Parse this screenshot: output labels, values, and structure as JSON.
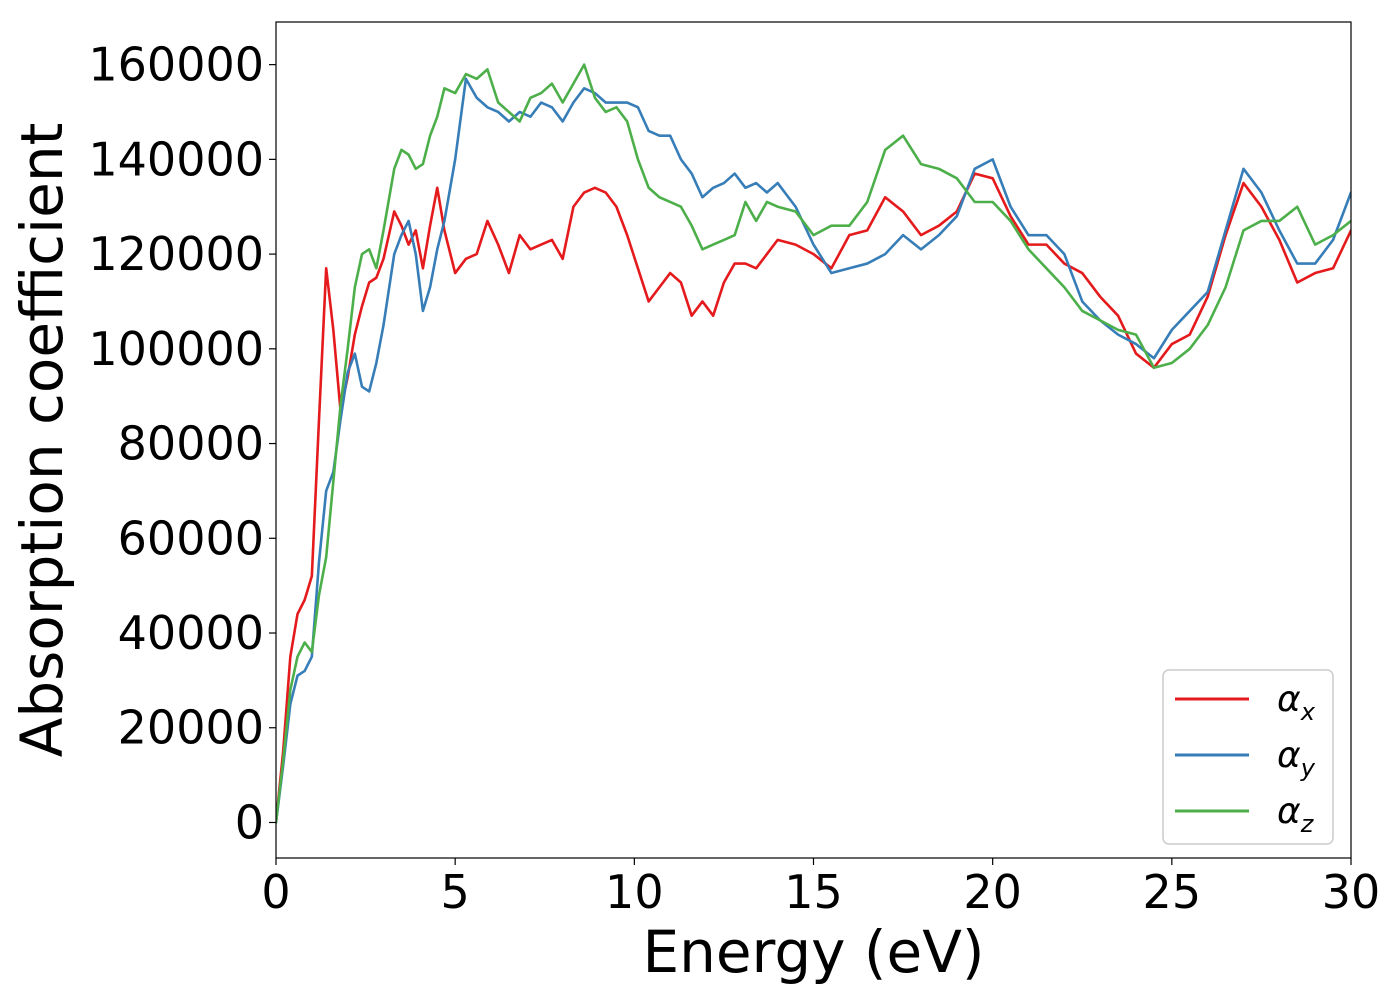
{
  "chart_data": {
    "type": "line",
    "xlabel": "Energy (eV)",
    "ylabel": "Absorption coefficient",
    "xlim": [
      0,
      30
    ],
    "ylim": [
      -7500,
      169000
    ],
    "xticks": [
      0,
      5,
      10,
      15,
      20,
      25,
      30
    ],
    "yticks": [
      0,
      20000,
      40000,
      60000,
      80000,
      100000,
      120000,
      140000,
      160000
    ],
    "grid": false,
    "legend_position": "lower-right",
    "series": [
      {
        "name": "αx",
        "name_base": "α",
        "name_sub": "x",
        "color": "#e41a1c",
        "x": [
          0,
          0.2,
          0.4,
          0.6,
          0.8,
          1.0,
          1.2,
          1.4,
          1.6,
          1.8,
          2.0,
          2.2,
          2.4,
          2.6,
          2.8,
          3.0,
          3.3,
          3.5,
          3.7,
          3.9,
          4.1,
          4.3,
          4.5,
          4.7,
          5.0,
          5.3,
          5.6,
          5.9,
          6.2,
          6.5,
          6.8,
          7.1,
          7.4,
          7.7,
          8.0,
          8.3,
          8.6,
          8.9,
          9.2,
          9.5,
          9.8,
          10.1,
          10.4,
          10.7,
          11.0,
          11.3,
          11.6,
          11.9,
          12.2,
          12.5,
          12.8,
          13.1,
          13.4,
          13.7,
          14.0,
          14.5,
          15.0,
          15.5,
          16.0,
          16.5,
          17.0,
          17.5,
          18.0,
          18.5,
          19.0,
          19.5,
          20.0,
          20.5,
          21.0,
          21.5,
          22.0,
          22.5,
          23.0,
          23.5,
          24.0,
          24.5,
          25.0,
          25.5,
          26.0,
          26.5,
          27.0,
          27.5,
          28.0,
          28.5,
          29.0,
          29.5,
          30.0
        ],
        "values": [
          0,
          15000,
          35000,
          44000,
          47000,
          52000,
          85000,
          117000,
          104000,
          87000,
          94000,
          103000,
          109000,
          114000,
          115000,
          119000,
          129000,
          126000,
          122000,
          125000,
          117000,
          126000,
          134000,
          125000,
          116000,
          119000,
          120000,
          127000,
          122000,
          116000,
          124000,
          121000,
          122000,
          123000,
          119000,
          130000,
          133000,
          134000,
          133000,
          130000,
          124000,
          117000,
          110000,
          113000,
          116000,
          114000,
          107000,
          110000,
          107000,
          114000,
          118000,
          118000,
          117000,
          120000,
          123000,
          122000,
          120000,
          117000,
          124000,
          125000,
          132000,
          129000,
          124000,
          126000,
          129000,
          137000,
          136000,
          128000,
          122000,
          122000,
          118000,
          116000,
          111000,
          107000,
          99000,
          96000,
          101000,
          103000,
          111000,
          124000,
          135000,
          130000,
          123000,
          114000,
          116000,
          117000,
          125000
        ]
      },
      {
        "name": "αy",
        "name_base": "α",
        "name_sub": "y",
        "color": "#377eb8",
        "x": [
          0,
          0.2,
          0.4,
          0.6,
          0.8,
          1.0,
          1.2,
          1.4,
          1.6,
          1.8,
          2.0,
          2.2,
          2.4,
          2.6,
          2.8,
          3.0,
          3.3,
          3.5,
          3.7,
          3.9,
          4.1,
          4.3,
          4.5,
          4.7,
          5.0,
          5.3,
          5.6,
          5.9,
          6.2,
          6.5,
          6.8,
          7.1,
          7.4,
          7.7,
          8.0,
          8.3,
          8.6,
          8.9,
          9.2,
          9.5,
          9.8,
          10.1,
          10.4,
          10.7,
          11.0,
          11.3,
          11.6,
          11.9,
          12.2,
          12.5,
          12.8,
          13.1,
          13.4,
          13.7,
          14.0,
          14.5,
          15.0,
          15.5,
          16.0,
          16.5,
          17.0,
          17.5,
          18.0,
          18.5,
          19.0,
          19.5,
          20.0,
          20.5,
          21.0,
          21.5,
          22.0,
          22.5,
          23.0,
          23.5,
          24.0,
          24.5,
          25.0,
          25.5,
          26.0,
          26.5,
          27.0,
          27.5,
          28.0,
          28.5,
          29.0,
          29.5,
          30.0
        ],
        "values": [
          0,
          12000,
          25000,
          31000,
          32000,
          35000,
          55000,
          70000,
          74000,
          85000,
          95000,
          99000,
          92000,
          91000,
          97000,
          105000,
          120000,
          124000,
          127000,
          120000,
          108000,
          113000,
          121000,
          127000,
          140000,
          157000,
          153000,
          151000,
          150000,
          148000,
          150000,
          149000,
          152000,
          151000,
          148000,
          152000,
          155000,
          154000,
          152000,
          152000,
          152000,
          151000,
          146000,
          145000,
          145000,
          140000,
          137000,
          132000,
          134000,
          135000,
          137000,
          134000,
          135000,
          133000,
          135000,
          130000,
          122000,
          116000,
          117000,
          118000,
          120000,
          124000,
          121000,
          124000,
          128000,
          138000,
          140000,
          130000,
          124000,
          124000,
          120000,
          110000,
          106000,
          103000,
          101000,
          98000,
          104000,
          108000,
          112000,
          125000,
          138000,
          133000,
          125000,
          118000,
          118000,
          123000,
          133000
        ]
      },
      {
        "name": "αz",
        "name_base": "α",
        "name_sub": "z",
        "color": "#4daf4a",
        "x": [
          0,
          0.2,
          0.4,
          0.6,
          0.8,
          1.0,
          1.2,
          1.4,
          1.6,
          1.8,
          2.0,
          2.2,
          2.4,
          2.6,
          2.8,
          3.0,
          3.3,
          3.5,
          3.7,
          3.9,
          4.1,
          4.3,
          4.5,
          4.7,
          5.0,
          5.3,
          5.6,
          5.9,
          6.2,
          6.5,
          6.8,
          7.1,
          7.4,
          7.7,
          8.0,
          8.3,
          8.6,
          8.9,
          9.2,
          9.5,
          9.8,
          10.1,
          10.4,
          10.7,
          11.0,
          11.3,
          11.6,
          11.9,
          12.2,
          12.5,
          12.8,
          13.1,
          13.4,
          13.7,
          14.0,
          14.5,
          15.0,
          15.5,
          16.0,
          16.5,
          17.0,
          17.5,
          18.0,
          18.5,
          19.0,
          19.5,
          20.0,
          20.5,
          21.0,
          21.5,
          22.0,
          22.5,
          23.0,
          23.5,
          24.0,
          24.5,
          25.0,
          25.5,
          26.0,
          26.5,
          27.0,
          27.5,
          28.0,
          28.5,
          29.0,
          29.5,
          30.0
        ],
        "values": [
          0,
          13000,
          28000,
          35000,
          38000,
          36000,
          48000,
          56000,
          72000,
          88000,
          100000,
          113000,
          120000,
          121000,
          117000,
          125000,
          138000,
          142000,
          141000,
          138000,
          139000,
          145000,
          149000,
          155000,
          154000,
          158000,
          157000,
          159000,
          152000,
          150000,
          148000,
          153000,
          154000,
          156000,
          152000,
          156000,
          160000,
          153000,
          150000,
          151000,
          148000,
          140000,
          134000,
          132000,
          131000,
          130000,
          126000,
          121000,
          122000,
          123000,
          124000,
          131000,
          127000,
          131000,
          130000,
          129000,
          124000,
          126000,
          126000,
          131000,
          142000,
          145000,
          139000,
          138000,
          136000,
          131000,
          131000,
          127000,
          121000,
          117000,
          113000,
          108000,
          106000,
          104000,
          103000,
          96000,
          97000,
          100000,
          105000,
          113000,
          125000,
          127000,
          127000,
          130000,
          122000,
          124000,
          127000
        ]
      }
    ]
  }
}
